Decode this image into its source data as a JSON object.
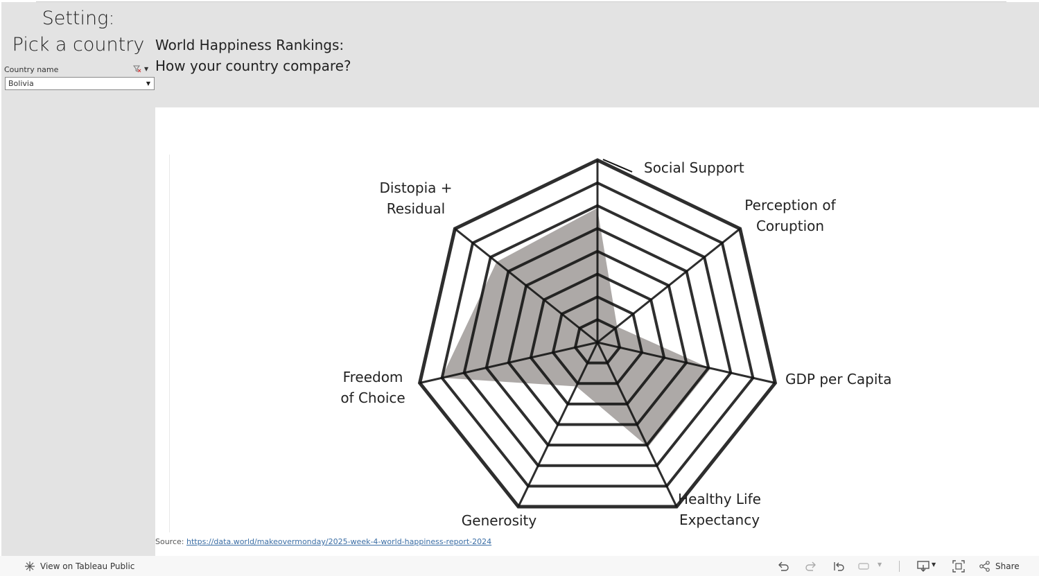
{
  "sidebar": {
    "title_line1": "Setting:",
    "title_line2": "Pick a country",
    "filter": {
      "label": "Country name",
      "selected": "Bolivia"
    }
  },
  "header": {
    "title_line1": "World Happiness Rankings:",
    "title_line2": "How your country compare?"
  },
  "chart_data": {
    "type": "radar",
    "axes": [
      "Social Support",
      "Perception of Coruption",
      "GDP per Capita",
      "Healthy Life Expectancy",
      "Generosity",
      "Freedom of Choice",
      "Distopia + Residual"
    ],
    "labels": [
      [
        "Social Support"
      ],
      [
        "Perception of",
        "Coruption"
      ],
      [
        "GDP per Capita"
      ],
      [
        "Healthy Life",
        "Expectancy"
      ],
      [
        "Generosity"
      ],
      [
        "Freedom",
        "of Choice"
      ],
      [
        "Distopia +",
        "Residual"
      ]
    ],
    "rings": 8,
    "values": [
      0.74,
      0.14,
      0.64,
      0.64,
      0.27,
      0.88,
      0.71
    ],
    "grid": true,
    "fill_color": "#9f9a98"
  },
  "source": {
    "prefix": "Source:",
    "link_text": "https://data.world/makeovermonday/2025-week-4-world-happiness-report-2024"
  },
  "toolbar": {
    "view_label": "View on Tableau Public",
    "share_label": "Share"
  }
}
